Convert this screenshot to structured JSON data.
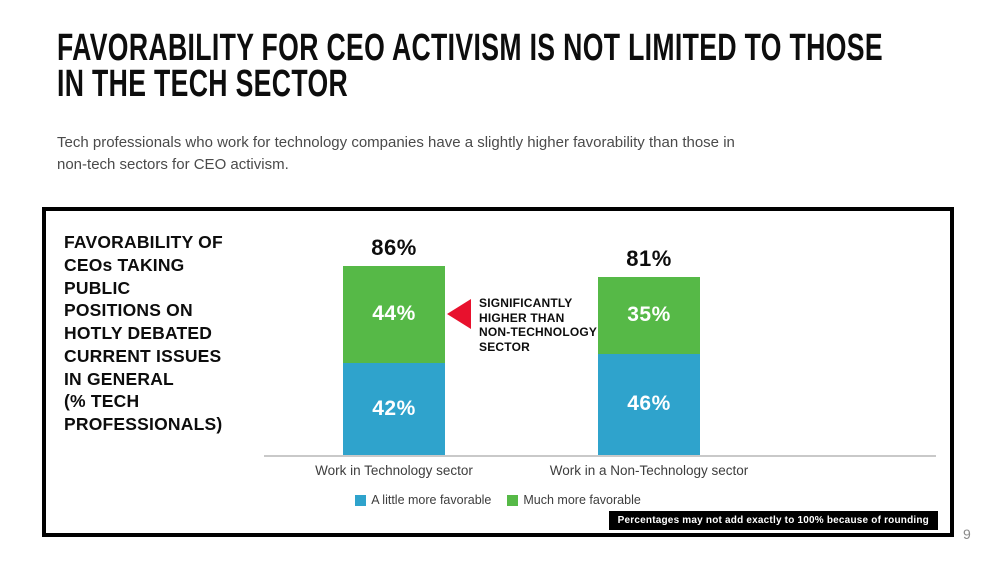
{
  "header": {
    "title": "FAVORABILITY FOR CEO ACTIVISM IS NOT LIMITED TO THOSE\nIN THE TECH SECTOR",
    "subtitle": "Tech professionals who work for technology companies have a slightly higher favorability than those in\nnon-tech sectors for CEO activism."
  },
  "chart": {
    "side_label": "FAVORABILITY OF\nCEOs TAKING\nPUBLIC\nPOSITIONS ON\nHOTLY DEBATED\nCURRENT ISSUES\nIN GENERAL\n(% TECH\nPROFESSIONALS)",
    "footnote": "Percentages may not add exactly to 100% because of rounding"
  },
  "chart_data": {
    "type": "bar",
    "stacked": true,
    "unit": "%",
    "categories": [
      "Work in Technology sector",
      "Work in a Non-Technology sector"
    ],
    "series": [
      {
        "name": "A little more favorable",
        "color": "#2fa3cc",
        "values": [
          42,
          46
        ]
      },
      {
        "name": "Much more favorable",
        "color": "#56b947",
        "values": [
          44,
          35
        ]
      }
    ],
    "totals": [
      86,
      81
    ],
    "total_labels": [
      "86%",
      "81%"
    ],
    "annotation": "SIGNIFICANTLY\nHIGHER THAN\nNON-TECHNOLOGY\nSECTOR",
    "annotation_color": "#e8112d",
    "legend_position": "bottom",
    "ylim": [
      0,
      100
    ],
    "grid": false
  },
  "footer": {
    "page_number": "9"
  }
}
